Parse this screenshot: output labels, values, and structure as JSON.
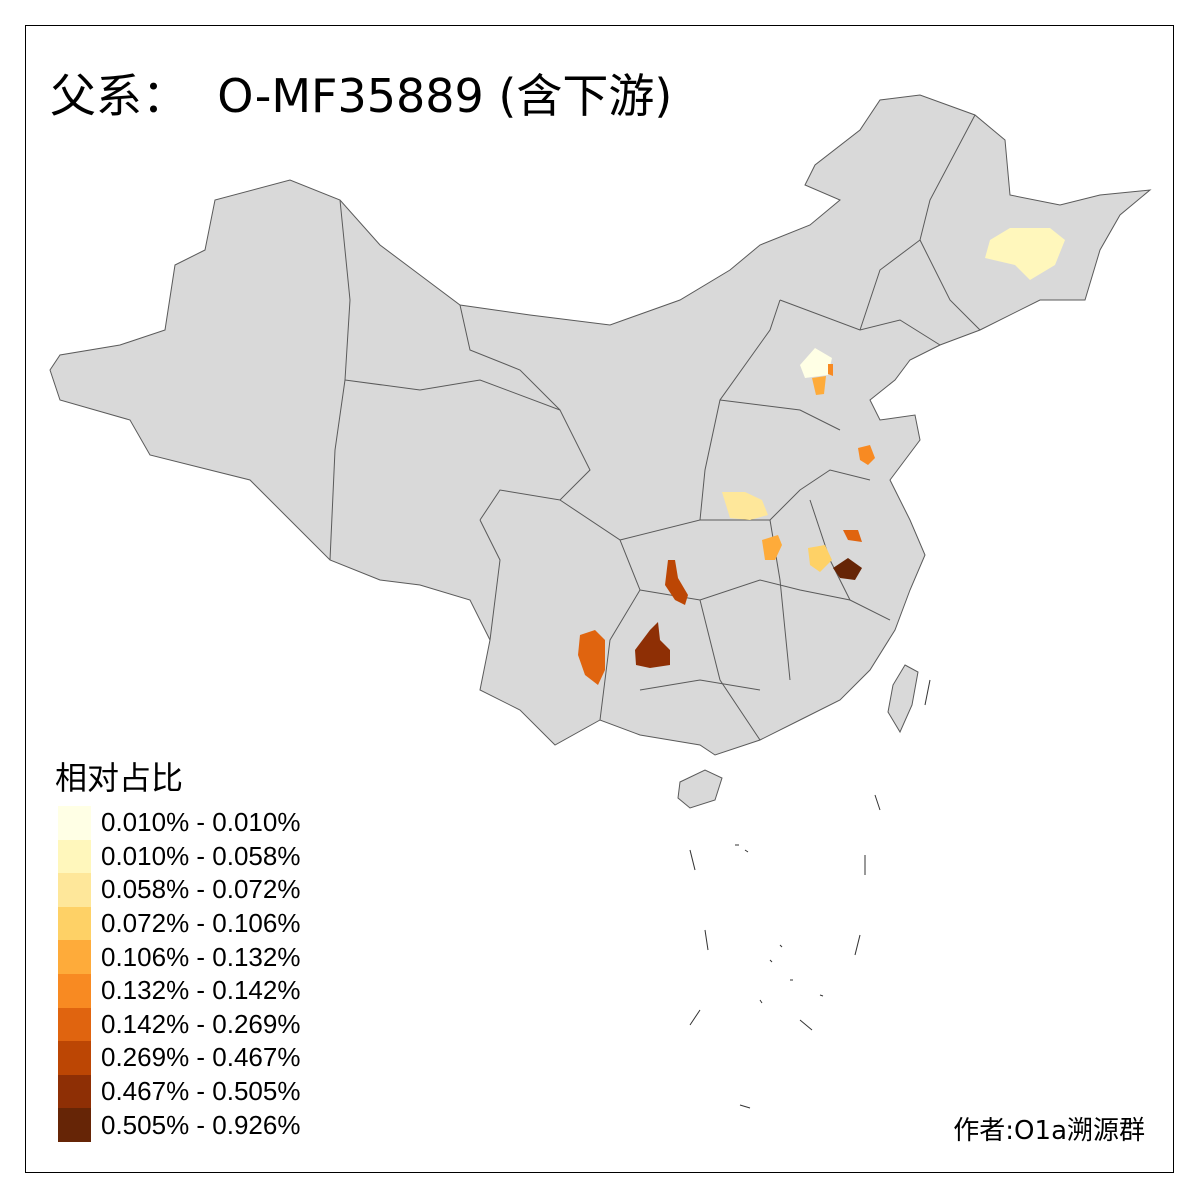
{
  "title": "父系：  O-MF35889 (含下游)",
  "legend": {
    "title": "相对占比",
    "items": [
      {
        "label": "0.010% - 0.010%",
        "color": "#FFFFE5"
      },
      {
        "label": "0.010% - 0.058%",
        "color": "#FFF7BC"
      },
      {
        "label": "0.058% - 0.072%",
        "color": "#FEE79A"
      },
      {
        "label": "0.072% - 0.106%",
        "color": "#FED166"
      },
      {
        "label": "0.106% - 0.132%",
        "color": "#FEAB3A"
      },
      {
        "label": "0.132% - 0.142%",
        "color": "#F88A22"
      },
      {
        "label": "0.142% - 0.269%",
        "color": "#E0640F"
      },
      {
        "label": "0.269% - 0.467%",
        "color": "#BC4604"
      },
      {
        "label": "0.467% - 0.505%",
        "color": "#8E2F05"
      },
      {
        "label": "0.505% - 0.926%",
        "color": "#662506"
      }
    ]
  },
  "map": {
    "base_color": "#D9D9D9",
    "border_color": "#5A5A5A",
    "no_data_color": "#D9D9D9"
  },
  "author": "作者:O1a溯源群"
}
